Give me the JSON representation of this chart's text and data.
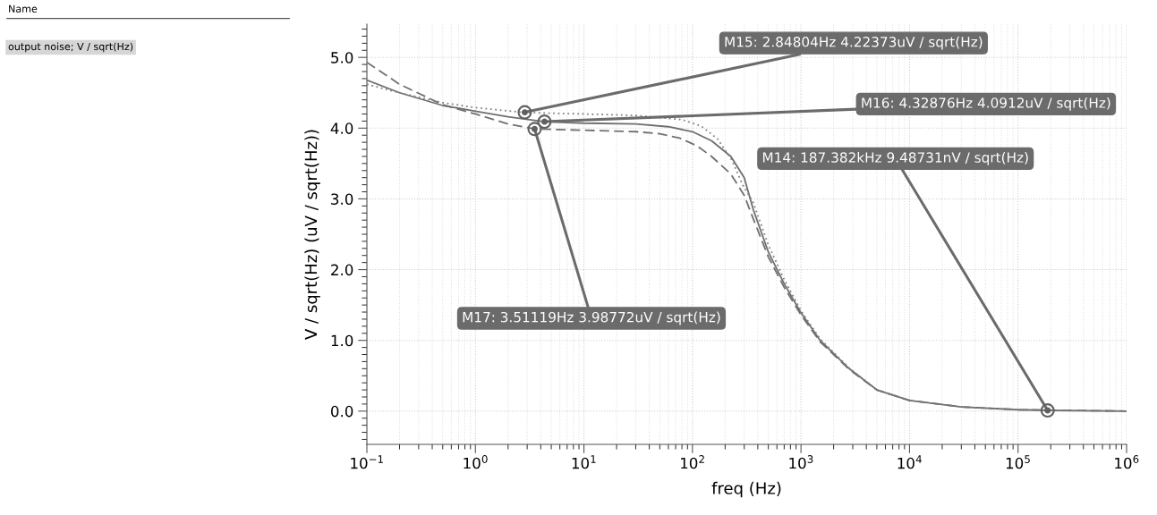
{
  "chart_data": {
    "type": "line",
    "xlabel": "freq (Hz)",
    "ylabel": "V / sqrt(Hz) (uV / sqrt(Hz))",
    "log": "x",
    "grid": true,
    "marker": "none",
    "xlim": [
      0.1,
      1000000
    ],
    "ylim": [
      -0.47,
      5.47
    ],
    "xticks": [
      {
        "value": 0.1,
        "label": "10$^{−1}$"
      },
      {
        "value": 1,
        "label": "10$^{0}$"
      },
      {
        "value": 10,
        "label": "10$^{1}$"
      },
      {
        "value": 100,
        "label": "10$^{2}$"
      },
      {
        "value": 1000,
        "label": "10$^{3}$"
      },
      {
        "value": 10000,
        "label": "10$^{4}$"
      },
      {
        "value": 100000,
        "label": "10$^{5}$"
      },
      {
        "value": 1000000,
        "label": "10$^{6}$"
      }
    ],
    "yticks": [
      {
        "value": 0,
        "label": "0.0"
      },
      {
        "value": 1,
        "label": "1.0"
      },
      {
        "value": 2,
        "label": "2.0"
      },
      {
        "value": 3,
        "label": "3.0"
      },
      {
        "value": 4,
        "label": "4.0"
      },
      {
        "value": 5,
        "label": "5.0"
      }
    ],
    "series": [
      {
        "color": "#6e6e6e",
        "line_style": "solid",
        "x": [
          0.1,
          0.2,
          0.5,
          1,
          2,
          4.33,
          10,
          30,
          60,
          100,
          150,
          226,
          300,
          363,
          500,
          700,
          1000,
          1500,
          2780,
          5000,
          10000,
          30000,
          100000,
          187382,
          1000000
        ],
        "values": [
          4.68,
          4.5,
          4.32,
          4.24,
          4.16,
          4.09,
          4.07,
          4.06,
          4.02,
          3.95,
          3.82,
          3.6,
          3.3,
          2.85,
          2.25,
          1.8,
          1.39,
          1.0,
          0.6,
          0.3,
          0.15,
          0.06,
          0.02,
          0.01,
          0.0
        ]
      },
      {
        "color": "#707070",
        "line_style": "dashed",
        "x": [
          0.1,
          0.2,
          0.5,
          1,
          2,
          3.51,
          10,
          30,
          50,
          76,
          110,
          150,
          226,
          300,
          363,
          500,
          700,
          1000,
          1500,
          2780,
          5000,
          10000,
          30000,
          100000,
          1000000
        ],
        "values": [
          4.93,
          4.62,
          4.33,
          4.2,
          4.06,
          3.99,
          3.97,
          3.95,
          3.92,
          3.86,
          3.75,
          3.6,
          3.35,
          3.05,
          2.72,
          2.18,
          1.75,
          1.36,
          0.98,
          0.59,
          0.3,
          0.15,
          0.06,
          0.02,
          0.0
        ]
      },
      {
        "color": "#808080",
        "line_style": "dotted",
        "x": [
          0.1,
          0.2,
          0.5,
          1,
          2.85,
          10,
          30,
          80,
          120,
          170,
          230,
          290,
          363,
          500,
          700,
          1000,
          1500,
          2780,
          5000,
          10000,
          30000,
          100000,
          1000000
        ],
        "values": [
          4.62,
          4.5,
          4.36,
          4.29,
          4.22,
          4.2,
          4.18,
          4.12,
          4.03,
          3.85,
          3.55,
          3.2,
          2.95,
          2.35,
          1.86,
          1.42,
          1.02,
          0.61,
          0.3,
          0.15,
          0.06,
          0.02,
          0.0
        ]
      }
    ],
    "annotations": [
      "Name",
      "output noise; V / sqrt(Hz)",
      {
        "text": "M15: 2.84804Hz 4.22373uV / sqrt(Hz)",
        "x": 2.84804,
        "y": 4.22373
      },
      {
        "text": "M16: 4.32876Hz 4.0912uV / sqrt(Hz)",
        "x": 4.32876,
        "y": 4.0912
      },
      {
        "text": "M14: 187.382kHz 9.48731nV / sqrt(Hz)",
        "x": 187382,
        "y": 0.00948731
      },
      {
        "text": "M17: 3.51119Hz 3.98772uV / sqrt(Hz)",
        "x": 3.51119,
        "y": 3.98772
      }
    ]
  }
}
